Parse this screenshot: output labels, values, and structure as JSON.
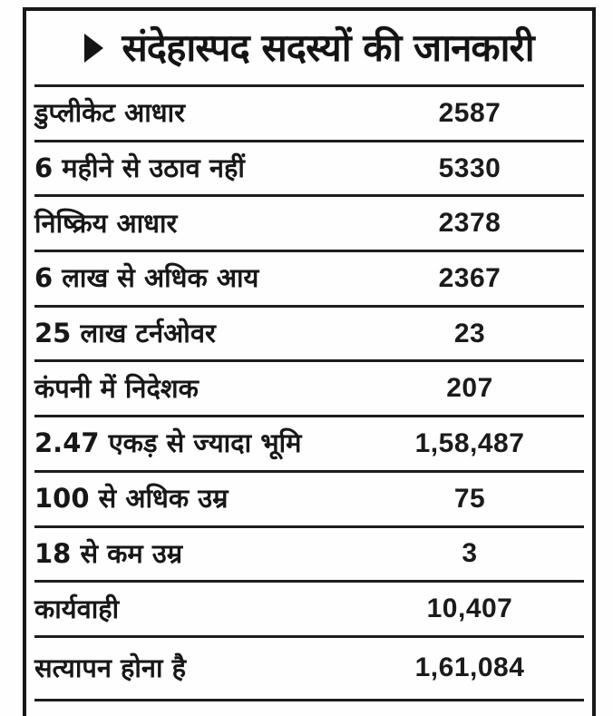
{
  "colors": {
    "ink": "#171717",
    "rule": "#1d1d1d",
    "paper": "#fffefe"
  },
  "panel": {
    "title": "संदेहास्पद सदस्यों की जानकारी",
    "bullet_icon": "right-pointing-triangle"
  },
  "table": {
    "rows": [
      {
        "label": "डुप्लीकेट आधार",
        "value": "2587"
      },
      {
        "label": "6 महीने से उठाव नहीं",
        "value": "5330"
      },
      {
        "label": "निष्क्रिय आधार",
        "value": "2378"
      },
      {
        "label": "6 लाख से अधिक आय",
        "value": "2367"
      },
      {
        "label": "25 लाख टर्नओवर",
        "value": "23"
      },
      {
        "label": "कंपनी में निदेशक",
        "value": "207"
      },
      {
        "label": "2.47 एकड़ से ज्यादा भूमि",
        "value": "1,58,487"
      },
      {
        "label": "100 से अधिक उम्र",
        "value": "75"
      },
      {
        "label": "18 से कम उम्र",
        "value": "3"
      },
      {
        "label": "कार्यवाही",
        "value": "10,407"
      },
      {
        "label": "सत्यापन होना है",
        "value": "1,61,084"
      }
    ]
  },
  "chart_data": {
    "type": "table",
    "title": "संदेहास्पद सदस्यों की जानकारी",
    "categories": [
      "डुप्लीकेट आधार",
      "6 महीने से उठाव नहीं",
      "निष्क्रिय आधार",
      "6 लाख से अधिक आय",
      "25 लाख टर्नओवर",
      "कंपनी में निदेशक",
      "2.47 एकड़ से ज्यादा भूमि",
      "100 से अधिक उम्र",
      "18 से कम उम्र",
      "कार्यवाही",
      "सत्यापन होना है"
    ],
    "values": [
      2587,
      5330,
      2378,
      2367,
      23,
      207,
      158487,
      75,
      3,
      10407,
      161084
    ],
    "value_labels": [
      "2587",
      "5330",
      "2378",
      "2367",
      "23",
      "207",
      "1,58,487",
      "75",
      "3",
      "10,407",
      "1,61,084"
    ]
  }
}
